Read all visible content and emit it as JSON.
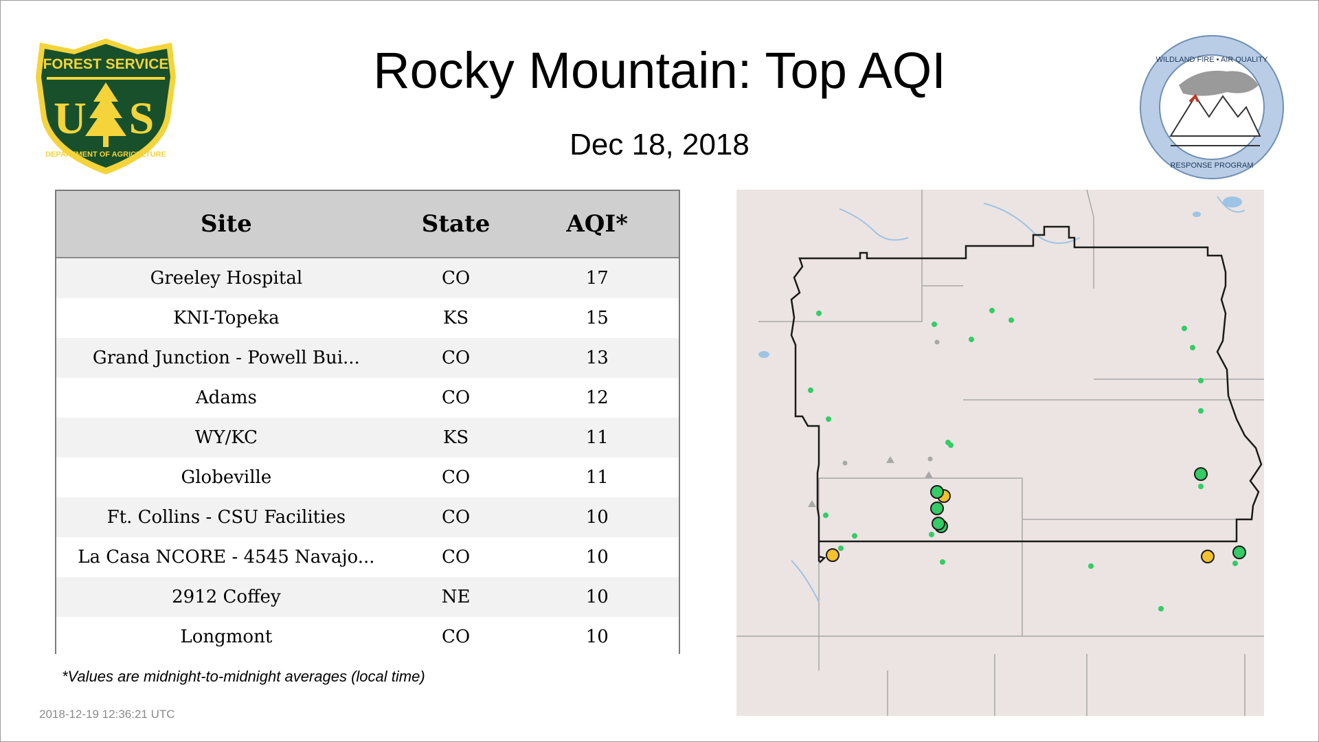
{
  "header": {
    "title": "Rocky Mountain: Top AQI",
    "date": "Dec 18, 2018"
  },
  "logos": {
    "forest_service": {
      "top_text": "FOREST SERVICE",
      "bottom_text": "DEPARTMENT OF AGRICULTURE",
      "letters_left": "U",
      "letters_right": "S"
    },
    "wildland_fire": {
      "top_text": "WILDLAND FIRE • AIR QUALITY",
      "bottom_text": "RESPONSE PROGRAM"
    }
  },
  "table": {
    "columns": [
      "Site",
      "State",
      "AQI*"
    ],
    "rows": [
      {
        "site": "Greeley Hospital",
        "state": "CO",
        "aqi": "17"
      },
      {
        "site": "KNI-Topeka",
        "state": "KS",
        "aqi": "15"
      },
      {
        "site": "Grand Junction - Powell Bui...",
        "state": "CO",
        "aqi": "13"
      },
      {
        "site": "Adams",
        "state": "CO",
        "aqi": "12"
      },
      {
        "site": "WY/KC",
        "state": "KS",
        "aqi": "11"
      },
      {
        "site": "Globeville",
        "state": "CO",
        "aqi": "11"
      },
      {
        "site": "Ft. Collins - CSU Facilities",
        "state": "CO",
        "aqi": "10"
      },
      {
        "site": "La Casa NCORE - 4545 Navajo...",
        "state": "CO",
        "aqi": "10"
      },
      {
        "site": "2912 Coffey",
        "state": "NE",
        "aqi": "10"
      },
      {
        "site": "Longmont",
        "state": "CO",
        "aqi": "10"
      }
    ]
  },
  "footnote": "*Values are midnight-to-midnight averages (local time)",
  "timestamp": "2018-12-19 12:36:21 UTC",
  "map": {
    "colors": {
      "good": "#33cc66",
      "moderate": "#f2c12e",
      "inactive": "#a8a8a8",
      "background": "#ece4e2",
      "water": "#9dc4e4",
      "boundary": "#1a1a1a",
      "state_lines": "#a7a7a7"
    }
  }
}
